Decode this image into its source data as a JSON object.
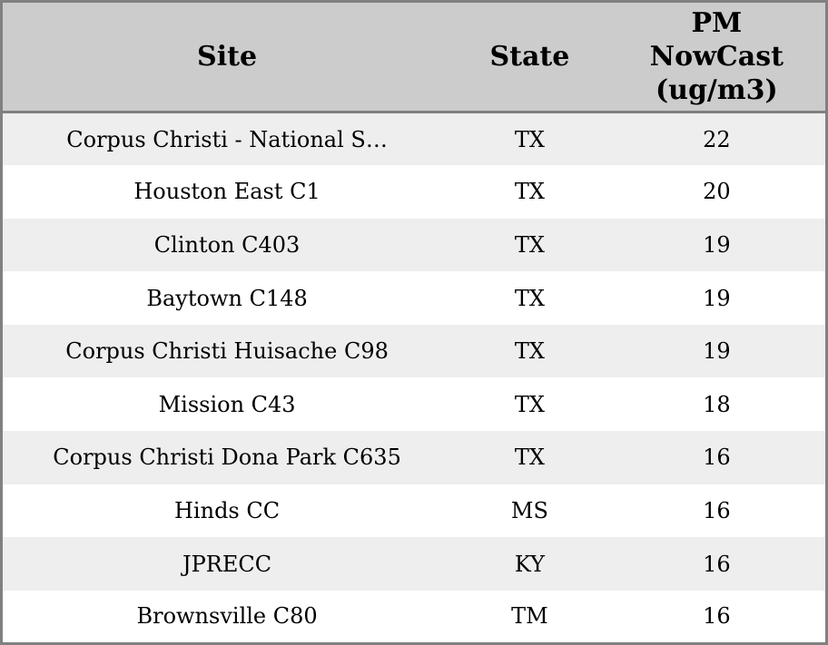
{
  "chart_data": {
    "type": "table",
    "title": "",
    "columns": [
      "Site",
      "State",
      "PM\nNowCast\n(ug/m3)"
    ],
    "rows": [
      {
        "site": "Corpus Christi - National S…",
        "state": "TX",
        "pm_nowcast": 22
      },
      {
        "site": "Houston East C1",
        "state": "TX",
        "pm_nowcast": 20
      },
      {
        "site": "Clinton C403",
        "state": "TX",
        "pm_nowcast": 19
      },
      {
        "site": "Baytown C148",
        "state": "TX",
        "pm_nowcast": 19
      },
      {
        "site": "Corpus Christi Huisache C98",
        "state": "TX",
        "pm_nowcast": 19
      },
      {
        "site": "Mission C43",
        "state": "TX",
        "pm_nowcast": 18
      },
      {
        "site": "Corpus Christi Dona Park C635",
        "state": "TX",
        "pm_nowcast": 16
      },
      {
        "site": "Hinds CC",
        "state": "MS",
        "pm_nowcast": 16
      },
      {
        "site": "JPRECC",
        "state": "KY",
        "pm_nowcast": 16
      },
      {
        "site": "Brownsville C80",
        "state": "TM",
        "pm_nowcast": 16
      }
    ]
  },
  "colors": {
    "header_bg": "#cccccc",
    "row_bg": "#ffffff",
    "row_alt_bg": "#eeeeee",
    "border": "#808080",
    "text": "#000000"
  }
}
